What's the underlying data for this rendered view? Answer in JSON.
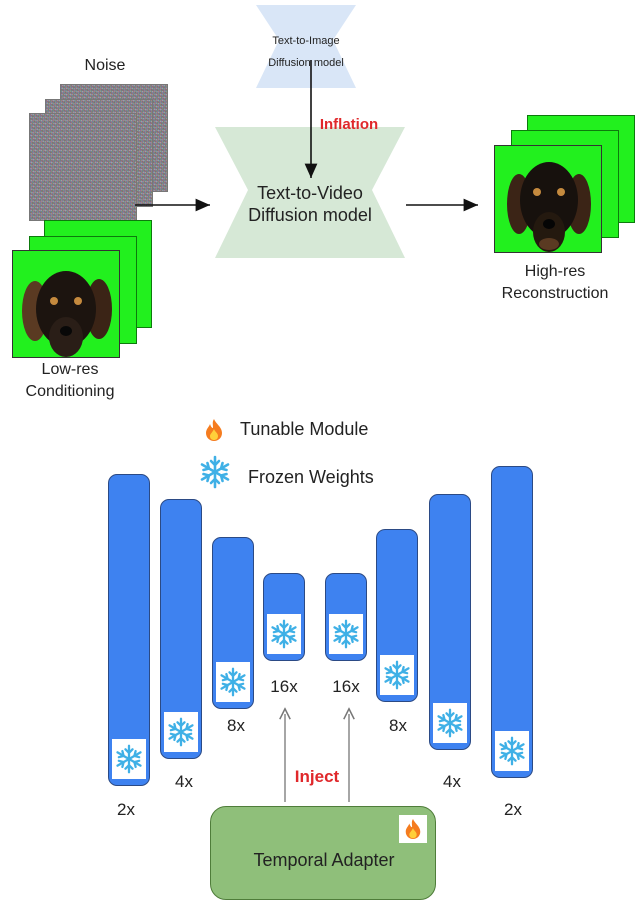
{
  "top": {
    "noise_label": "Noise",
    "lowres_label_line1": "Low-res",
    "lowres_label_line2": "Conditioning",
    "t2i_line1": "Text-to-Image",
    "t2i_line2": "Diffusion model",
    "inflation_label": "Inflation",
    "t2v_line1": "Text-to-Video",
    "t2v_line2": "Diffusion model",
    "highres_line1": "High-res",
    "highres_line2": "Reconstruction"
  },
  "legend": {
    "tunable_label": "Tunable Module",
    "frozen_label": "Frozen Weights"
  },
  "unet": {
    "scales_left": [
      "2x",
      "4x",
      "8x",
      "16x"
    ],
    "scales_right": [
      "16x",
      "8x",
      "4x",
      "2x"
    ]
  },
  "adapter": {
    "inject_label": "Inject",
    "adapter_label": "Temporal Adapter"
  },
  "colors": {
    "unet_blue": "#3e82f0",
    "adapter_green": "#8fbf7a",
    "t2v_green": "#d6e8d6",
    "t2i_blue": "#d9e6f7",
    "highlight_red": "#e0282b",
    "screen_green": "#22f01e"
  }
}
